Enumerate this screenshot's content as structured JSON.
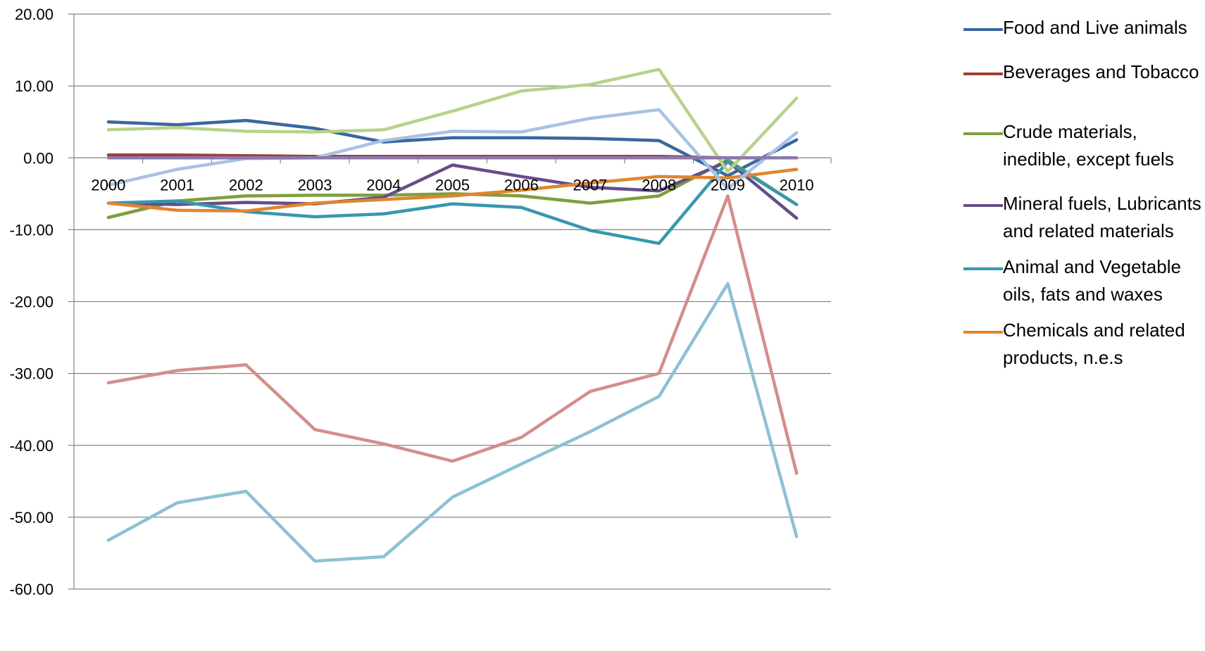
{
  "chart_data": {
    "type": "line",
    "title": "",
    "xlabel": "",
    "ylabel": "",
    "categories": [
      "2000",
      "2001",
      "2002",
      "2003",
      "2004",
      "2005",
      "2006",
      "2007",
      "2008",
      "2009",
      "2010"
    ],
    "ylim": [
      -60,
      20
    ],
    "yticks": [
      "20.00",
      "10.00",
      "0.00",
      "-10.00",
      "-20.00",
      "-30.00",
      "-40.00",
      "-50.00",
      "-60.00"
    ],
    "ytick_values": [
      20,
      10,
      0,
      -10,
      -20,
      -30,
      -40,
      -50,
      -60
    ],
    "grid": true,
    "legend_position": "right",
    "series": [
      {
        "name": "Food and Live animals",
        "color": "#3A67A0",
        "legend": true,
        "values": [
          5.0,
          4.6,
          5.2,
          4.1,
          2.2,
          2.8,
          2.8,
          2.7,
          2.4,
          -2.5,
          2.5
        ]
      },
      {
        "name": "Beverages and Tobacco",
        "color": "#A33D3A",
        "legend": true,
        "values": [
          0.4,
          0.4,
          0.3,
          0.2,
          0.2,
          0.2,
          0.2,
          0.2,
          0.2,
          0.0,
          0.0
        ]
      },
      {
        "name": "Crude materials, inedible, except fuels",
        "color": "#7F9E3E",
        "legend": true,
        "values": [
          -8.3,
          -6.0,
          -5.3,
          -5.2,
          -5.2,
          -5.0,
          -5.3,
          -6.3,
          -5.3,
          -0.3,
          -6.5
        ]
      },
      {
        "name": "Mineral fuels, Lubricants and related materials",
        "color": "#664D89",
        "legend": true,
        "values": [
          -6.3,
          -6.5,
          -6.2,
          -6.4,
          -5.5,
          -1.0,
          -2.6,
          -4.1,
          -4.6,
          -0.5,
          -8.4
        ]
      },
      {
        "name": "Animal and Vegetable oils, fats and waxes",
        "color": "#3797AF",
        "legend": true,
        "values": [
          -6.3,
          -6.0,
          -7.5,
          -8.2,
          -7.8,
          -6.4,
          -6.9,
          -10.1,
          -11.9,
          -0.5,
          -6.5
        ]
      },
      {
        "name": "Chemicals and related products, n.e.s",
        "color": "#E0852E",
        "legend": true,
        "values": [
          -6.3,
          -7.3,
          -7.4,
          -6.3,
          -5.8,
          -5.3,
          -4.5,
          -3.5,
          -2.6,
          -2.8,
          -1.6
        ]
      },
      {
        "name": "",
        "color": "#A7C2E3",
        "legend": false,
        "values": [
          -3.8,
          -1.6,
          -0.1,
          0.0,
          2.4,
          3.7,
          3.6,
          5.5,
          6.7,
          -4.3,
          3.5
        ]
      },
      {
        "name": "",
        "color": "#D38E8B",
        "legend": false,
        "values": [
          -31.3,
          -29.6,
          -28.8,
          -37.8,
          -39.8,
          -42.2,
          -38.9,
          -32.5,
          -30.0,
          -5.3,
          -43.9
        ]
      },
      {
        "name": "",
        "color": "#B7D28B",
        "legend": false,
        "values": [
          3.9,
          4.2,
          3.7,
          3.6,
          3.9,
          6.5,
          9.3,
          10.2,
          12.3,
          -1.9,
          8.3
        ]
      },
      {
        "name": "",
        "color": "#8A78AD",
        "legend": false,
        "values": [
          0.0,
          0.0,
          0.0,
          0.0,
          0.0,
          0.0,
          0.0,
          0.0,
          0.0,
          0.0,
          0.0
        ]
      },
      {
        "name": "",
        "color": "#8CC1D3",
        "legend": false,
        "values": [
          -53.2,
          -48.0,
          -46.4,
          -56.1,
          -55.5,
          -47.2,
          -42.6,
          -38.1,
          -33.2,
          -17.5,
          -52.7
        ]
      }
    ]
  }
}
